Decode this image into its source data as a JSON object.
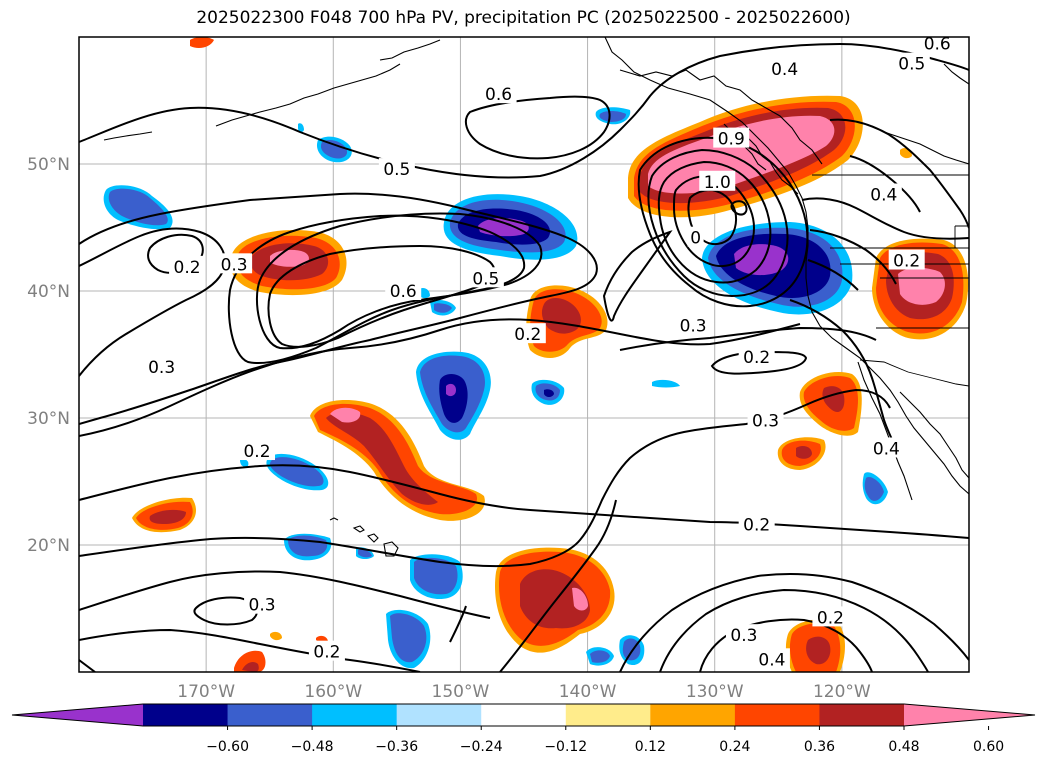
{
  "title": "2025022300 F048 700 hPa PV, precipitation PC (2025022500 - 2025022600)",
  "map": {
    "lon_range": [
      -180,
      -110
    ],
    "lat_range": [
      10,
      60
    ],
    "lon_ticks": [
      {
        "lon": -170,
        "label": "170°W"
      },
      {
        "lon": -160,
        "label": "160°W"
      },
      {
        "lon": -150,
        "label": "150°W"
      },
      {
        "lon": -140,
        "label": "140°W"
      },
      {
        "lon": -130,
        "label": "130°W"
      },
      {
        "lon": -120,
        "label": "120°W"
      }
    ],
    "lat_ticks": [
      {
        "lat": 20,
        "label": "20°N"
      },
      {
        "lat": 30,
        "label": "30°N"
      },
      {
        "lat": 40,
        "label": "40°N"
      },
      {
        "lat": 50,
        "label": "50°N"
      }
    ],
    "grid": true,
    "fill_field": "precipitation PC",
    "contour_field": "700 hPa PV"
  },
  "colorbar": {
    "levels": [
      "-0.60",
      "-0.48",
      "-0.36",
      "-0.24",
      "-0.12",
      "0.12",
      "0.24",
      "0.36",
      "0.48",
      "0.60"
    ],
    "colors": [
      "#9932cc",
      "#00008b",
      "#3a5fcd",
      "#00bfff",
      "#b0e2ff",
      "#ffffff",
      "#ffec8b",
      "#ffa500",
      "#ff4500",
      "#b22222",
      "#ff82ab"
    ],
    "extend": "both"
  },
  "contour_labels": [
    {
      "text": "0.6",
      "lon": -147,
      "lat": 55.5
    },
    {
      "text": "0.5",
      "lon": -155,
      "lat": 49.6
    },
    {
      "text": "0.6",
      "lon": -154.5,
      "lat": 40
    },
    {
      "text": "0.5",
      "lon": -148,
      "lat": 41.0
    },
    {
      "text": "0.3",
      "lon": -167.8,
      "lat": 42.1
    },
    {
      "text": "0.2",
      "lon": -171.5,
      "lat": 41.9
    },
    {
      "text": "0.3",
      "lon": -173.5,
      "lat": 34.0
    },
    {
      "text": "0.2",
      "lon": -144.7,
      "lat": 36.6
    },
    {
      "text": "0.3",
      "lon": -131.7,
      "lat": 37.3
    },
    {
      "text": "0.2",
      "lon": -126.7,
      "lat": 34.8
    },
    {
      "text": "0.3",
      "lon": -126.0,
      "lat": 29.8
    },
    {
      "text": "0.2",
      "lon": -126.7,
      "lat": 21.6
    },
    {
      "text": "0.2",
      "lon": -166.0,
      "lat": 27.4
    },
    {
      "text": "0.3",
      "lon": -165.6,
      "lat": 15.3
    },
    {
      "text": "0.2",
      "lon": -160.5,
      "lat": 11.6
    },
    {
      "text": "0.3",
      "lon": -127.7,
      "lat": 12.9
    },
    {
      "text": "0.4",
      "lon": -125.5,
      "lat": 11.0
    },
    {
      "text": "0.2",
      "lon": -120.9,
      "lat": 14.3
    },
    {
      "text": "0.4",
      "lon": -116.5,
      "lat": 27.6
    },
    {
      "text": "0.2",
      "lon": -114.9,
      "lat": 42.4
    },
    {
      "text": "0.4",
      "lon": -116.7,
      "lat": 47.6
    },
    {
      "text": "0.4",
      "lon": -124.5,
      "lat": 57.5
    },
    {
      "text": "0.5",
      "lon": -114.5,
      "lat": 57.9
    },
    {
      "text": "0.6",
      "lon": -112.5,
      "lat": 59.5
    },
    {
      "text": "1.0",
      "lon": -129.8,
      "lat": 48.6
    },
    {
      "text": "0",
      "lon": -131.5,
      "lat": 44.2
    },
    {
      "text": "0.9",
      "lon": -128.7,
      "lat": 52.0
    }
  ]
}
